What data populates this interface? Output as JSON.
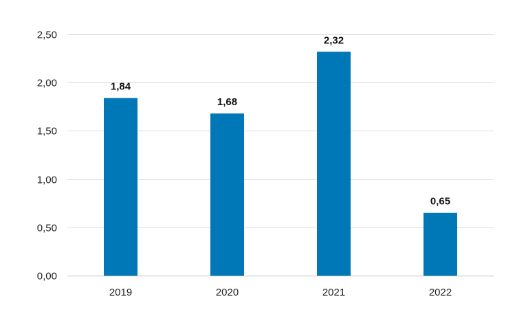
{
  "chart_data": {
    "type": "bar",
    "title": "",
    "xlabel": "",
    "ylabel": "",
    "categories": [
      "2019",
      "2020",
      "2021",
      "2022"
    ],
    "values": [
      1.84,
      1.68,
      2.32,
      0.65
    ],
    "value_labels": [
      "1,84",
      "1,68",
      "2,32",
      "0,65"
    ],
    "ylim": [
      0,
      2.5
    ],
    "yticks": [
      0,
      0.5,
      1.0,
      1.5,
      2.0,
      2.5
    ],
    "ytick_labels": [
      "0,00",
      "0,50",
      "1,00",
      "1,50",
      "2,00",
      "2,50"
    ],
    "grid": true,
    "legend": "none",
    "bar_color": "#0077b6"
  }
}
